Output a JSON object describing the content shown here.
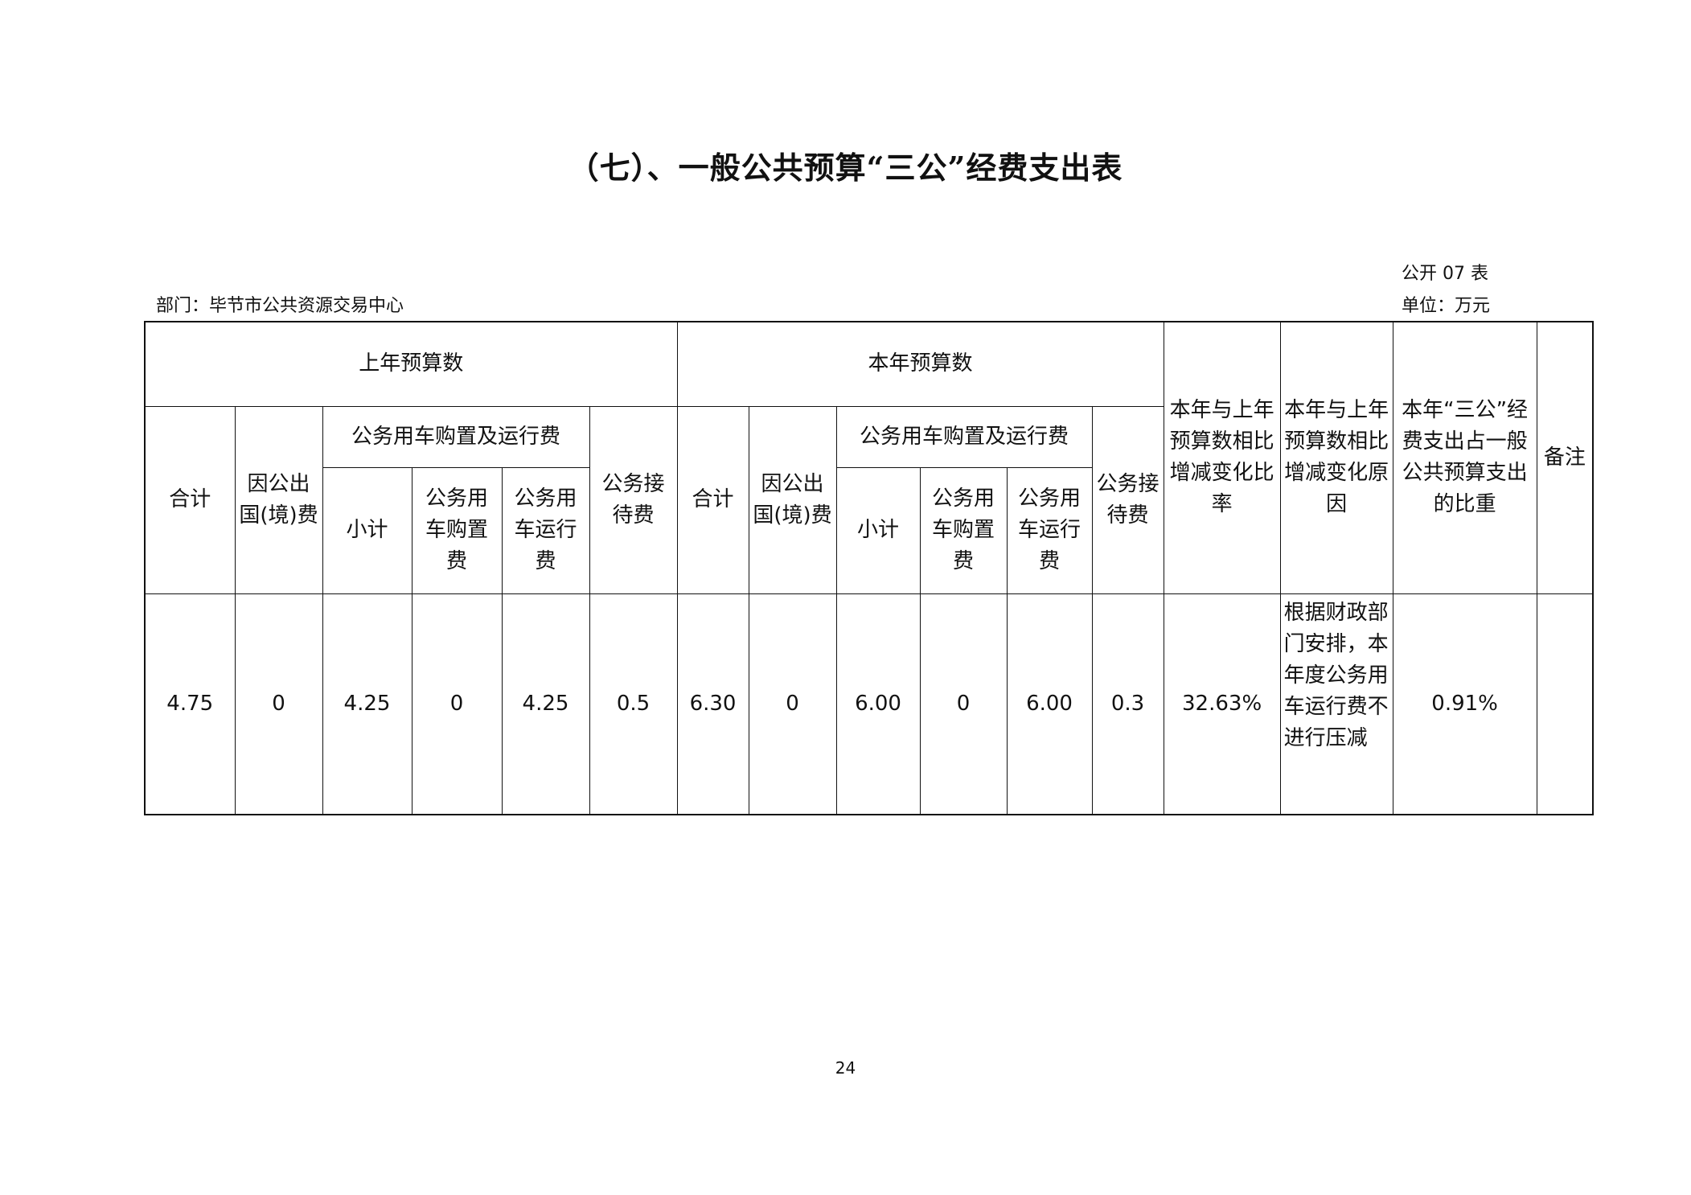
{
  "title": "（七）、一般公共预算“三公”经费支出表",
  "table_code": "公开 07 表",
  "department": "部门：毕节市公共资源交易中心",
  "unit": "单位：万元",
  "headers": {
    "last_year": "上年预算数",
    "this_year": "本年预算数",
    "change_rate": "本年与上年预算数相比增减变化比率",
    "change_reason": "本年与上年预算数相比增减变化原因",
    "share": "本年“三公”经费支出占一般公共预算支出的比重",
    "remark": "备注",
    "total": "合计",
    "abroad": "因公出国(境)费",
    "vehicle": "公务用车购置及运行费",
    "reception": "公务接待费",
    "subtotal": "小计",
    "purchase": "公务用车购置费",
    "operation": "公务用车运行费"
  },
  "row": {
    "ly_total": "4.75",
    "ly_abroad": "0",
    "ly_subtotal": "4.25",
    "ly_purchase": "0",
    "ly_operation": "4.25",
    "ly_reception": "0.5",
    "ty_total": "6.30",
    "ty_abroad": "0",
    "ty_subtotal": "6.00",
    "ty_purchase": "0",
    "ty_operation": "6.00",
    "ty_reception": "0.3",
    "change_rate": "32.63%",
    "change_reason": "根据财政部门安排，本年度公务用车运行费不进行压减",
    "share": "0.91%",
    "remark": ""
  },
  "page_number": "24"
}
